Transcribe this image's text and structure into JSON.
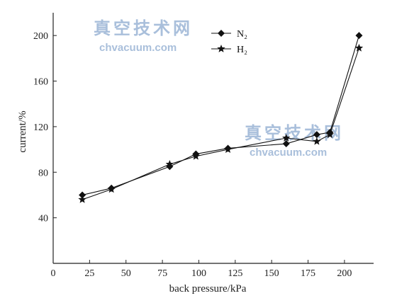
{
  "watermark": {
    "cn": "真空技术网",
    "en": "chvacuum.com"
  },
  "chart_data": {
    "type": "line",
    "xlabel": "back pressure/kPa",
    "ylabel": "current/%",
    "xlim": [
      0,
      220
    ],
    "ylim": [
      0,
      220
    ],
    "xticks": [
      0,
      25,
      50,
      75,
      100,
      125,
      150,
      175,
      200
    ],
    "yticks": [
      40,
      80,
      120,
      160,
      200
    ],
    "grid": false,
    "legend_position": "top-center",
    "series": [
      {
        "name": "N₂",
        "marker": "diamond",
        "color": "#111111",
        "points": [
          [
            20,
            60
          ],
          [
            40,
            66
          ],
          [
            80,
            85
          ],
          [
            98,
            96
          ],
          [
            120,
            101
          ],
          [
            160,
            105
          ],
          [
            181,
            113
          ],
          [
            190,
            115
          ],
          [
            210,
            200
          ]
        ]
      },
      {
        "name": "H₂",
        "marker": "star",
        "color": "#111111",
        "points": [
          [
            20,
            56
          ],
          [
            40,
            65
          ],
          [
            80,
            87
          ],
          [
            98,
            94
          ],
          [
            120,
            100
          ],
          [
            160,
            110
          ],
          [
            181,
            107
          ],
          [
            190,
            113
          ],
          [
            210,
            189
          ]
        ]
      }
    ]
  }
}
